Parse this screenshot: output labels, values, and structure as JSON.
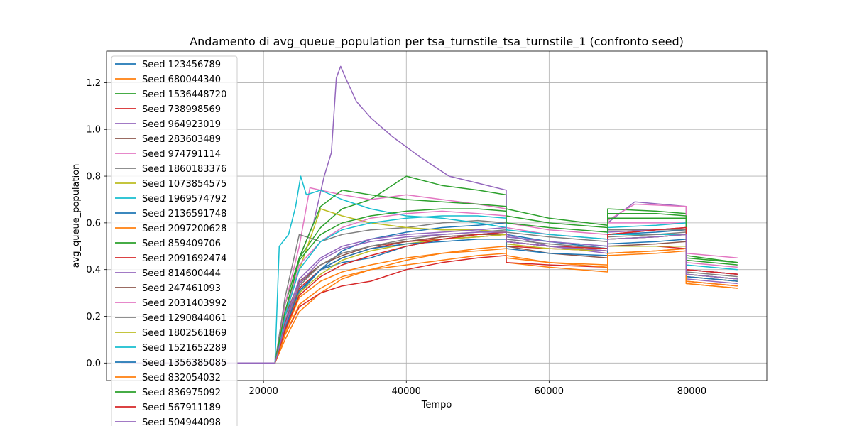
{
  "chart_data": {
    "type": "line",
    "title": "Andamento di avg_queue_population per tsa_turnstile_tsa_turnstile_1 (confronto seed)",
    "xlabel": "Tempo",
    "ylabel": "avg_queue_population",
    "xlim": [
      -2000,
      90500
    ],
    "ylim": [
      -0.075,
      1.335
    ],
    "xticks": [
      20000,
      40000,
      60000,
      80000
    ],
    "yticks": [
      0.0,
      0.2,
      0.4,
      0.6,
      0.8,
      1.0,
      1.2
    ],
    "grid": true,
    "legend_position": "upper-left",
    "series": [
      {
        "name": "Seed 123456789",
        "color": "#1f77b4",
        "x": [
          0,
          21600,
          23000,
          25000,
          28000,
          31000,
          35000,
          40000,
          45000,
          50000,
          54000,
          54001,
          60000,
          68200,
          68201,
          75000,
          79200,
          79201,
          86400
        ],
        "y": [
          0,
          0,
          0.15,
          0.3,
          0.4,
          0.48,
          0.53,
          0.56,
          0.58,
          0.59,
          0.6,
          0.55,
          0.52,
          0.49,
          0.55,
          0.56,
          0.57,
          0.4,
          0.38
        ]
      },
      {
        "name": "Seed 680044340",
        "color": "#ff7f0e",
        "x": [
          0,
          21600,
          23000,
          25000,
          28000,
          31000,
          35000,
          40000,
          45000,
          50000,
          54000,
          54001,
          60000,
          68200,
          68201,
          75000,
          79200,
          79201,
          86400
        ],
        "y": [
          0,
          0,
          0.1,
          0.22,
          0.3,
          0.36,
          0.4,
          0.42,
          0.44,
          0.46,
          0.47,
          0.43,
          0.41,
          0.39,
          0.46,
          0.47,
          0.48,
          0.34,
          0.32
        ]
      },
      {
        "name": "Seed 1536448720",
        "color": "#2ca02c",
        "x": [
          0,
          21600,
          23000,
          25000,
          28000,
          31000,
          35000,
          40000,
          45000,
          50000,
          54000,
          54001,
          60000,
          68200,
          68201,
          75000,
          79200,
          79201,
          86400
        ],
        "y": [
          0,
          0,
          0.25,
          0.45,
          0.58,
          0.66,
          0.7,
          0.8,
          0.76,
          0.74,
          0.72,
          0.66,
          0.62,
          0.59,
          0.66,
          0.65,
          0.64,
          0.46,
          0.43
        ]
      },
      {
        "name": "Seed 738998569",
        "color": "#d62728",
        "x": [
          0,
          21600,
          23000,
          25000,
          28000,
          31000,
          35000,
          40000,
          45000,
          50000,
          54000,
          54001,
          60000,
          68200,
          68201,
          75000,
          79200,
          79201,
          86400
        ],
        "y": [
          0,
          0,
          0.12,
          0.24,
          0.3,
          0.33,
          0.35,
          0.4,
          0.43,
          0.45,
          0.46,
          0.43,
          0.42,
          0.41,
          0.5,
          0.5,
          0.49,
          0.35,
          0.33
        ]
      },
      {
        "name": "Seed 964923019",
        "color": "#9467bd",
        "x": [
          0,
          21600,
          23000,
          25000,
          27000,
          28500,
          29500,
          30200,
          30800,
          31500,
          33000,
          35000,
          38000,
          42000,
          46000,
          50000,
          54000,
          54001,
          60000,
          68200,
          68201,
          72000,
          79200,
          79201,
          86400
        ],
        "y": [
          0,
          0,
          0.2,
          0.45,
          0.6,
          0.8,
          0.9,
          1.22,
          1.27,
          1.22,
          1.12,
          1.05,
          0.97,
          0.88,
          0.8,
          0.77,
          0.74,
          0.55,
          0.5,
          0.47,
          0.6,
          0.69,
          0.67,
          0.36,
          0.34
        ]
      },
      {
        "name": "Seed 283603489",
        "color": "#8c564b",
        "x": [
          0,
          21600,
          23000,
          25000,
          28000,
          31000,
          35000,
          40000,
          45000,
          50000,
          54000,
          54001,
          60000,
          68200,
          68201,
          75000,
          79200,
          79201,
          86400
        ],
        "y": [
          0,
          0,
          0.2,
          0.35,
          0.42,
          0.46,
          0.5,
          0.52,
          0.54,
          0.55,
          0.56,
          0.52,
          0.5,
          0.48,
          0.53,
          0.54,
          0.55,
          0.38,
          0.36
        ]
      },
      {
        "name": "Seed 974791114",
        "color": "#e377c2",
        "x": [
          0,
          21600,
          23000,
          25000,
          26500,
          28000,
          31000,
          35000,
          40000,
          45000,
          50000,
          54000,
          54001,
          60000,
          68200,
          68201,
          72000,
          79200,
          79201,
          86400
        ],
        "y": [
          0,
          0,
          0.25,
          0.5,
          0.75,
          0.74,
          0.72,
          0.7,
          0.72,
          0.7,
          0.68,
          0.66,
          0.6,
          0.57,
          0.55,
          0.61,
          0.68,
          0.67,
          0.47,
          0.45
        ]
      },
      {
        "name": "Seed 1860183376",
        "color": "#7f7f7f",
        "x": [
          0,
          21600,
          23000,
          25000,
          28000,
          31000,
          35000,
          40000,
          45000,
          50000,
          54000,
          54001,
          60000,
          68200,
          68201,
          75000,
          79200,
          79201,
          86400
        ],
        "y": [
          0,
          0,
          0.28,
          0.55,
          0.52,
          0.55,
          0.57,
          0.58,
          0.6,
          0.61,
          0.6,
          0.56,
          0.54,
          0.52,
          0.57,
          0.57,
          0.57,
          0.4,
          0.38
        ]
      },
      {
        "name": "Seed 1073854575",
        "color": "#bcbd22",
        "x": [
          0,
          21600,
          23000,
          25000,
          28000,
          31000,
          35000,
          40000,
          45000,
          50000,
          54000,
          54001,
          60000,
          68200,
          68201,
          75000,
          79200,
          79201,
          86400
        ],
        "y": [
          0,
          0,
          0.2,
          0.4,
          0.66,
          0.63,
          0.6,
          0.58,
          0.57,
          0.57,
          0.56,
          0.52,
          0.5,
          0.48,
          0.5,
          0.5,
          0.5,
          0.37,
          0.35
        ]
      },
      {
        "name": "Seed 1969574792",
        "color": "#17becf",
        "x": [
          0,
          21600,
          22200,
          23500,
          24500,
          25200,
          26000,
          28000,
          31000,
          35000,
          40000,
          45000,
          50000,
          54000,
          54001,
          60000,
          68200,
          68201,
          75000,
          79200,
          79201,
          86400
        ],
        "y": [
          0,
          0,
          0.5,
          0.55,
          0.67,
          0.8,
          0.72,
          0.74,
          0.7,
          0.66,
          0.63,
          0.62,
          0.6,
          0.58,
          0.54,
          0.52,
          0.5,
          0.55,
          0.55,
          0.55,
          0.38,
          0.36
        ]
      },
      {
        "name": "Seed 2136591748",
        "color": "#1f77b4",
        "x": [
          0,
          21600,
          23000,
          25000,
          28000,
          31000,
          35000,
          40000,
          45000,
          50000,
          54000,
          54001,
          60000,
          68200,
          68201,
          75000,
          79200,
          79201,
          86400
        ],
        "y": [
          0,
          0,
          0.15,
          0.3,
          0.4,
          0.43,
          0.45,
          0.5,
          0.53,
          0.55,
          0.56,
          0.52,
          0.5,
          0.49,
          0.53,
          0.54,
          0.55,
          0.38,
          0.36
        ]
      },
      {
        "name": "Seed 2097200628",
        "color": "#ff7f0e",
        "x": [
          0,
          21600,
          23000,
          25000,
          28000,
          31000,
          35000,
          40000,
          45000,
          50000,
          54000,
          54001,
          60000,
          68200,
          68201,
          75000,
          79200,
          79201,
          86400
        ],
        "y": [
          0,
          0,
          0.12,
          0.25,
          0.32,
          0.37,
          0.4,
          0.44,
          0.47,
          0.49,
          0.5,
          0.46,
          0.43,
          0.41,
          0.47,
          0.48,
          0.49,
          0.35,
          0.33
        ]
      },
      {
        "name": "Seed 859409706",
        "color": "#2ca02c",
        "x": [
          0,
          21600,
          23000,
          25000,
          28000,
          31000,
          35000,
          40000,
          45000,
          50000,
          54000,
          54001,
          60000,
          68200,
          68201,
          75000,
          79200,
          79201,
          86400
        ],
        "y": [
          0,
          0,
          0.2,
          0.45,
          0.67,
          0.74,
          0.72,
          0.7,
          0.69,
          0.68,
          0.67,
          0.63,
          0.6,
          0.58,
          0.64,
          0.64,
          0.63,
          0.45,
          0.43
        ]
      },
      {
        "name": "Seed 2091692474",
        "color": "#d62728",
        "x": [
          0,
          21600,
          23000,
          25000,
          28000,
          31000,
          35000,
          40000,
          45000,
          50000,
          54000,
          54001,
          60000,
          68200,
          68201,
          75000,
          79200,
          79201,
          86400
        ],
        "y": [
          0,
          0,
          0.15,
          0.32,
          0.4,
          0.45,
          0.49,
          0.52,
          0.53,
          0.54,
          0.55,
          0.5,
          0.49,
          0.48,
          0.55,
          0.57,
          0.58,
          0.4,
          0.38
        ]
      },
      {
        "name": "Seed 814600444",
        "color": "#9467bd",
        "x": [
          0,
          21600,
          23000,
          25000,
          28000,
          31000,
          35000,
          40000,
          45000,
          50000,
          54000,
          54001,
          60000,
          68200,
          68201,
          75000,
          79200,
          79201,
          86400
        ],
        "y": [
          0,
          0,
          0.18,
          0.36,
          0.45,
          0.5,
          0.53,
          0.55,
          0.56,
          0.57,
          0.58,
          0.54,
          0.52,
          0.5,
          0.56,
          0.57,
          0.58,
          0.4,
          0.38
        ]
      },
      {
        "name": "Seed 247461093",
        "color": "#8c564b",
        "x": [
          0,
          21600,
          23000,
          25000,
          28000,
          31000,
          35000,
          40000,
          45000,
          50000,
          54000,
          54001,
          60000,
          68200,
          68201,
          75000,
          79200,
          79201,
          86400
        ],
        "y": [
          0,
          0,
          0.17,
          0.34,
          0.42,
          0.47,
          0.5,
          0.52,
          0.54,
          0.55,
          0.55,
          0.5,
          0.47,
          0.45,
          0.5,
          0.51,
          0.52,
          0.37,
          0.35
        ]
      },
      {
        "name": "Seed 2031403992",
        "color": "#e377c2",
        "x": [
          0,
          21600,
          23000,
          25000,
          28000,
          31000,
          35000,
          40000,
          45000,
          50000,
          54000,
          54001,
          60000,
          68200,
          68201,
          75000,
          79200,
          79201,
          86400
        ],
        "y": [
          0,
          0,
          0.2,
          0.42,
          0.52,
          0.58,
          0.62,
          0.64,
          0.65,
          0.64,
          0.63,
          0.58,
          0.55,
          0.53,
          0.6,
          0.6,
          0.6,
          0.43,
          0.41
        ]
      },
      {
        "name": "Seed 1290844061",
        "color": "#7f7f7f",
        "x": [
          0,
          21600,
          23000,
          25000,
          28000,
          31000,
          35000,
          40000,
          45000,
          50000,
          54000,
          54001,
          60000,
          68200,
          68201,
          75000,
          79200,
          79201,
          86400
        ],
        "y": [
          0,
          0,
          0.16,
          0.33,
          0.42,
          0.47,
          0.5,
          0.53,
          0.55,
          0.56,
          0.57,
          0.53,
          0.51,
          0.49,
          0.54,
          0.55,
          0.56,
          0.39,
          0.37
        ]
      },
      {
        "name": "Seed 1802561869",
        "color": "#bcbd22",
        "x": [
          0,
          21600,
          23000,
          25000,
          28000,
          31000,
          35000,
          40000,
          45000,
          50000,
          54000,
          54001,
          60000,
          68200,
          68201,
          75000,
          79200,
          79201,
          86400
        ],
        "y": [
          0,
          0,
          0.14,
          0.3,
          0.38,
          0.44,
          0.48,
          0.51,
          0.53,
          0.54,
          0.55,
          0.51,
          0.49,
          0.48,
          0.53,
          0.54,
          0.55,
          0.38,
          0.36
        ]
      },
      {
        "name": "Seed 1521652289",
        "color": "#17becf",
        "x": [
          0,
          21600,
          23000,
          25000,
          28000,
          31000,
          35000,
          40000,
          45000,
          50000,
          54000,
          54001,
          60000,
          68200,
          68201,
          75000,
          79200,
          79201,
          86400
        ],
        "y": [
          0,
          0,
          0.2,
          0.4,
          0.52,
          0.57,
          0.6,
          0.62,
          0.63,
          0.63,
          0.62,
          0.57,
          0.55,
          0.53,
          0.58,
          0.59,
          0.6,
          0.42,
          0.4
        ]
      },
      {
        "name": "Seed 1356385085",
        "color": "#1f77b4",
        "x": [
          0,
          21600,
          23000,
          25000,
          28000,
          31000,
          35000,
          40000,
          45000,
          50000,
          54000,
          54001,
          60000,
          68200,
          68201,
          75000,
          79200,
          79201,
          86400
        ],
        "y": [
          0,
          0,
          0.15,
          0.31,
          0.4,
          0.45,
          0.49,
          0.51,
          0.52,
          0.53,
          0.53,
          0.49,
          0.47,
          0.46,
          0.51,
          0.52,
          0.53,
          0.37,
          0.35
        ]
      },
      {
        "name": "Seed 832054032",
        "color": "#ff7f0e",
        "x": [
          0,
          21600,
          23000,
          25000,
          28000,
          31000,
          35000,
          40000,
          45000,
          50000,
          54000,
          54001,
          60000,
          68200,
          68201,
          75000,
          79200,
          79201,
          86400
        ],
        "y": [
          0,
          0,
          0.13,
          0.28,
          0.35,
          0.39,
          0.42,
          0.45,
          0.47,
          0.48,
          0.49,
          0.45,
          0.43,
          0.42,
          0.47,
          0.48,
          0.49,
          0.34,
          0.32
        ]
      },
      {
        "name": "Seed 836975092",
        "color": "#2ca02c",
        "x": [
          0,
          21600,
          23000,
          25000,
          28000,
          31000,
          35000,
          40000,
          45000,
          50000,
          54000,
          54001,
          60000,
          68200,
          68201,
          75000,
          79200,
          79201,
          86400
        ],
        "y": [
          0,
          0,
          0.22,
          0.44,
          0.55,
          0.6,
          0.63,
          0.65,
          0.66,
          0.66,
          0.65,
          0.6,
          0.58,
          0.56,
          0.62,
          0.62,
          0.62,
          0.44,
          0.42
        ]
      },
      {
        "name": "Seed 567911189",
        "color": "#d62728",
        "x": [
          0,
          21600,
          23000,
          25000,
          28000,
          31000,
          35000,
          40000,
          45000,
          50000,
          54000,
          54001,
          60000,
          68200,
          68201,
          75000,
          79200,
          79201,
          86400
        ],
        "y": [
          0,
          0,
          0.14,
          0.29,
          0.37,
          0.42,
          0.46,
          0.5,
          0.53,
          0.55,
          0.56,
          0.52,
          0.5,
          0.49,
          0.55,
          0.57,
          0.58,
          0.4,
          0.38
        ]
      },
      {
        "name": "Seed 504944098",
        "color": "#9467bd",
        "x": [
          0,
          21600,
          23000,
          25000,
          28000,
          31000,
          35000,
          40000,
          45000,
          50000,
          54000,
          54001,
          60000,
          68200,
          68201,
          75000,
          79200,
          79201,
          86400
        ],
        "y": [
          0,
          0,
          0.16,
          0.34,
          0.44,
          0.49,
          0.52,
          0.54,
          0.55,
          0.56,
          0.56,
          0.52,
          0.5,
          0.48,
          0.53,
          0.54,
          0.55,
          0.38,
          0.36
        ]
      }
    ]
  }
}
